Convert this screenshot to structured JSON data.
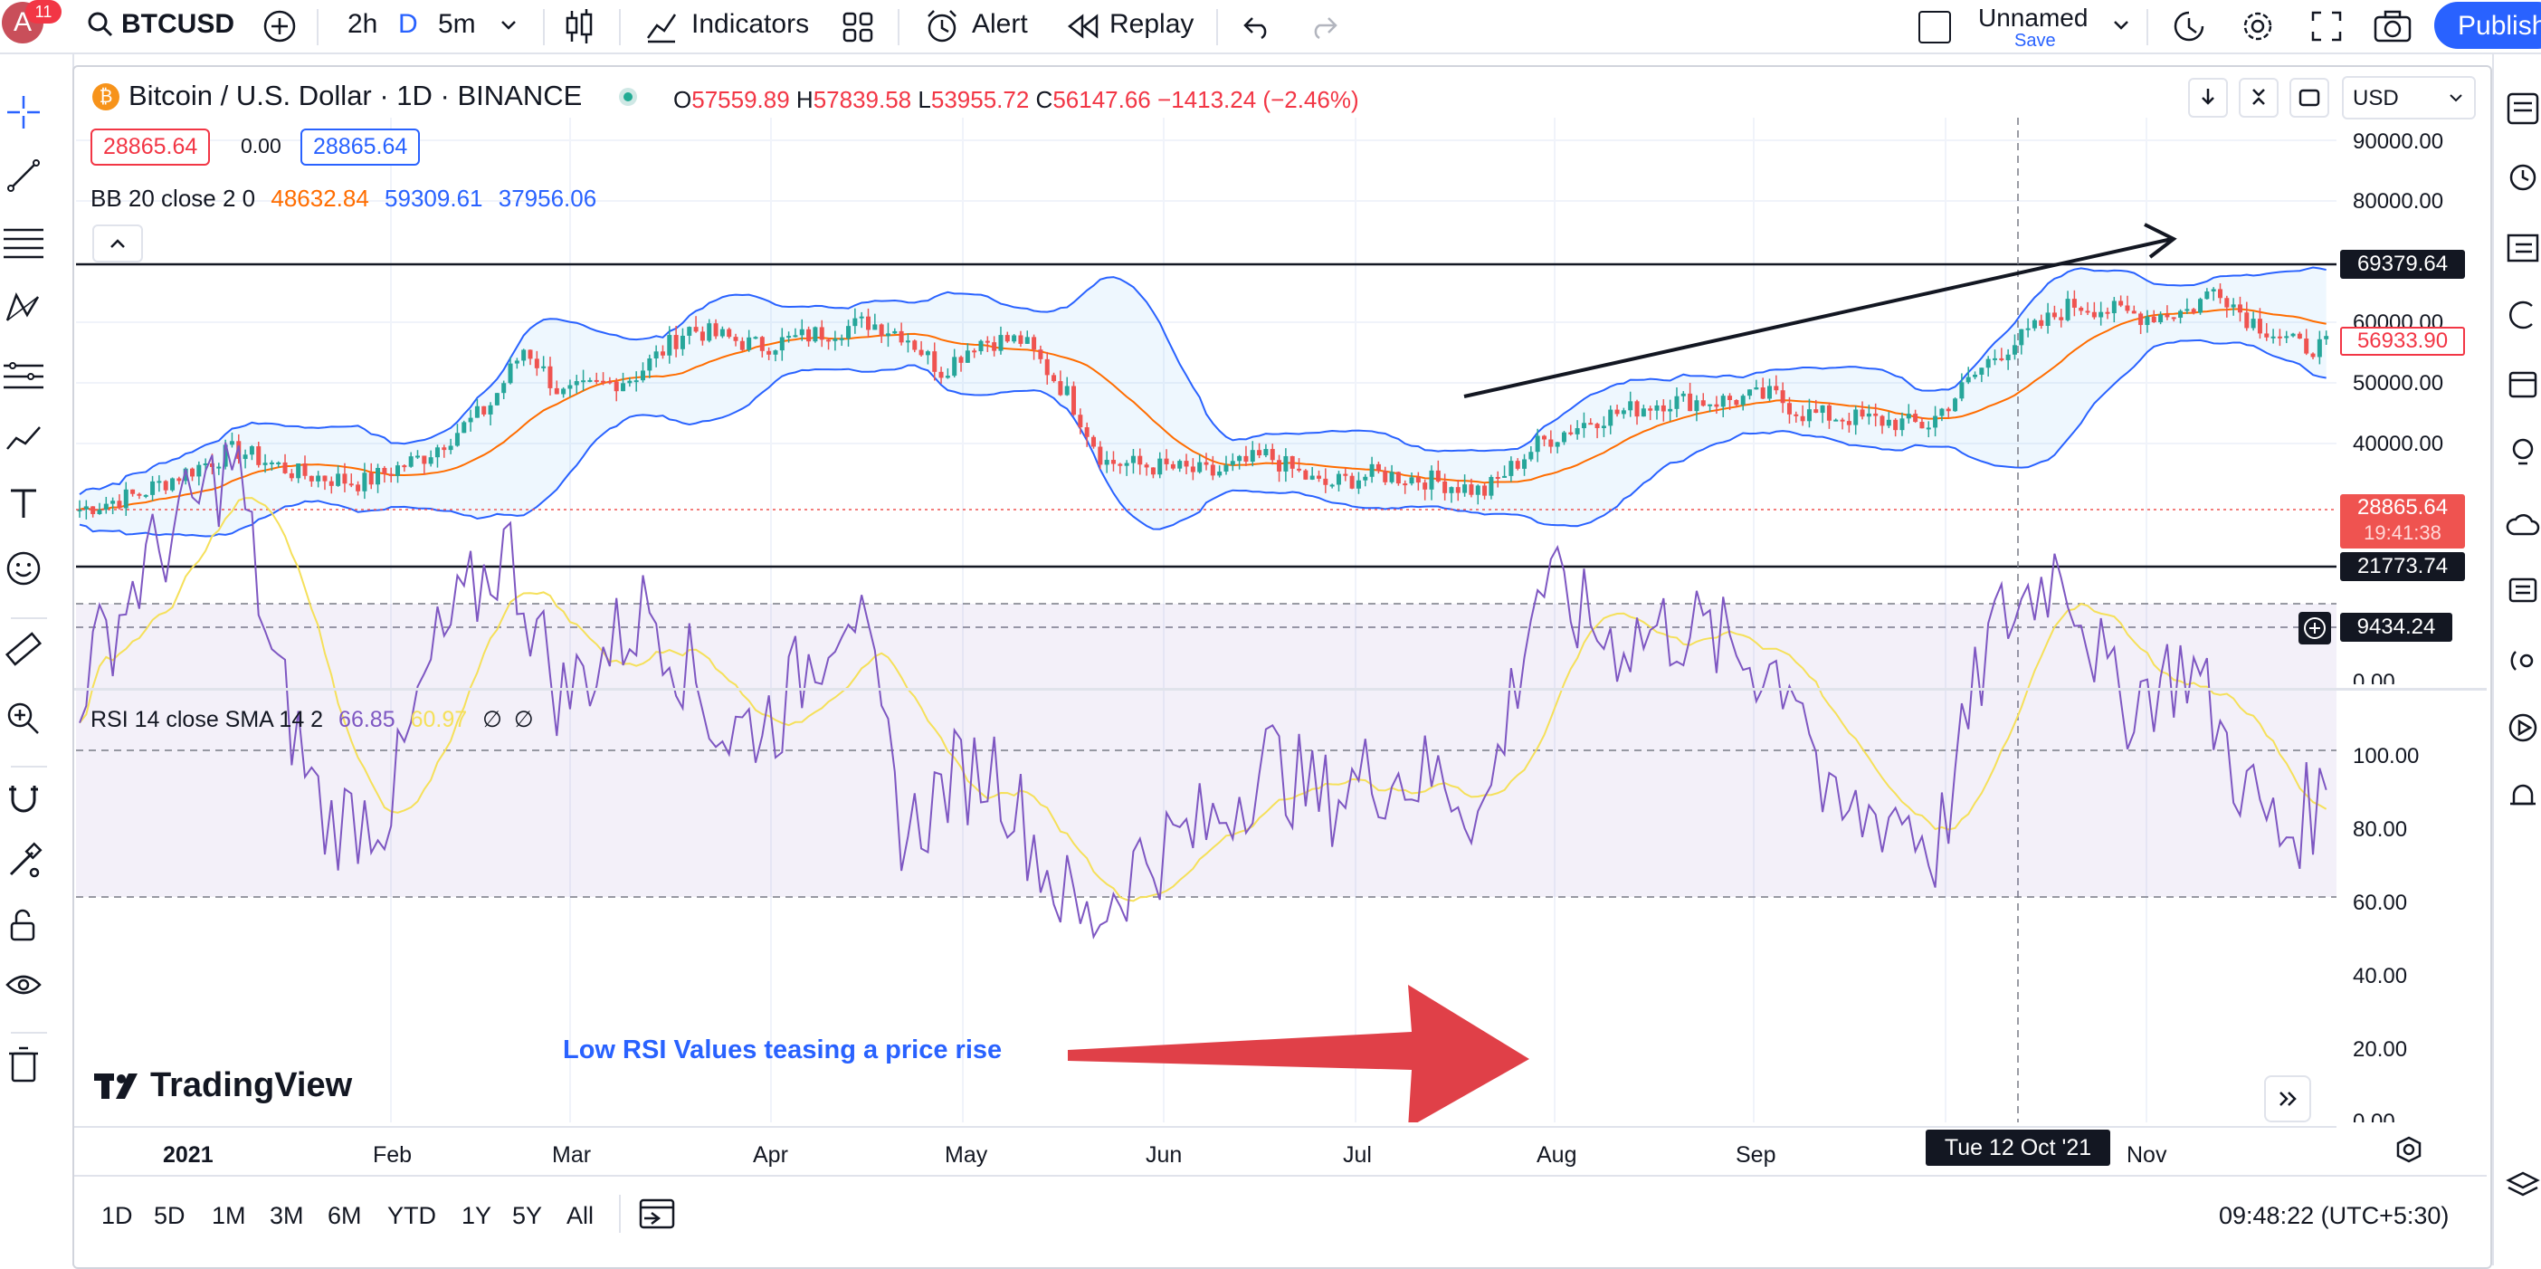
{
  "topbar": {
    "avatar_letter": "A",
    "avatar_badge": "11",
    "symbol": "BTCUSD",
    "intervals": [
      "2h",
      "D",
      "5m"
    ],
    "indicators_label": "Indicators",
    "alert_label": "Alert",
    "replay_label": "Replay",
    "layout_name": "Unnamed",
    "save_label": "Save",
    "publish_label": "Publish"
  },
  "legend": {
    "title": "Bitcoin / U.S. Dollar · 1D · BINANCE",
    "o_label": "O",
    "o_value": "57559.89",
    "h_label": "H",
    "h_value": "57839.58",
    "l_label": "L",
    "l_value": "53955.72",
    "c_label": "C",
    "c_value": "56147.66",
    "change": "−1413.24 (−2.46%)",
    "bid": "28865.64",
    "spread": "0.00",
    "ask": "28865.64",
    "bb_label": "BB 20 close 2 0",
    "bb_basis": "48632.84",
    "bb_upper": "59309.61",
    "bb_lower": "37956.06"
  },
  "rsi_legend": {
    "label": "RSI 14 close SMA 14 2",
    "rsi": "66.85",
    "sma": "60.97",
    "na1": "∅",
    "na2": "∅"
  },
  "price_scale": {
    "currency": "USD",
    "ticks": [
      "90000.00",
      "80000.00",
      "60000.00",
      "50000.00",
      "40000.00",
      "0.00"
    ],
    "tag_top": "69379.64",
    "tag_bb": "56933.90",
    "tag_price": "28865.64",
    "tag_countdown": "19:41:38",
    "tag_bottom": "21773.74",
    "tag_cross": "9434.24"
  },
  "rsi_scale": {
    "ticks": [
      "100.00",
      "80.00",
      "60.00",
      "40.00",
      "20.00",
      "0.00"
    ]
  },
  "time_axis": {
    "labels": [
      "2021",
      "Feb",
      "Mar",
      "Apr",
      "May",
      "Jun",
      "Jul",
      "Aug",
      "Sep",
      "Nov"
    ],
    "crosshair_date": "Tue 12 Oct '21"
  },
  "annotation": {
    "text": "Low RSI Values teasing a price rise"
  },
  "watermark": "TradingView",
  "bottom": {
    "ranges": [
      "1D",
      "5D",
      "1M",
      "3M",
      "6M",
      "YTD",
      "1Y",
      "5Y",
      "All"
    ],
    "clock": "09:48:22 (UTC+5:30)"
  },
  "colors": {
    "up": "#26a69a",
    "down": "#ef5350",
    "bb_band": "#2962ff",
    "bb_basis": "#ff6d00",
    "rsi": "#7e57c2",
    "rsi_sma": "#f5e05a",
    "annotation_arrow": "#e04048",
    "annotation_text": "#2962ff",
    "accent": "#2962ff"
  }
}
